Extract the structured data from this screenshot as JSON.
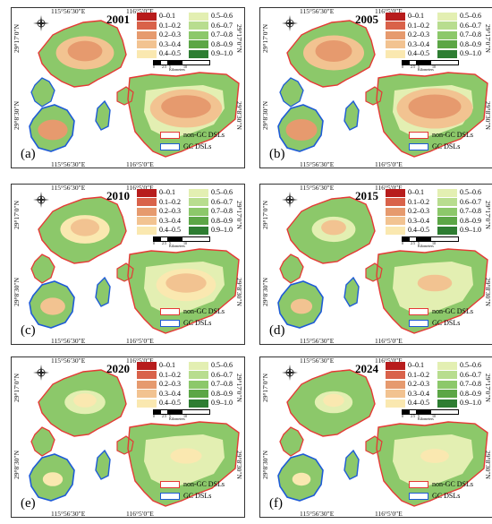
{
  "coords": {
    "top_left": "115°56′30″E",
    "top_right": "116°5′0″E",
    "lat_top": "29°17′0″N",
    "lat_bottom": "29°8′30″N"
  },
  "legend": {
    "classes": [
      "0–0.1",
      "0.1–0.2",
      "0.2–0.3",
      "0.3–0.4",
      "0.4–0.5",
      "0.5–0.6",
      "0.6–0.7",
      "0.7–0.8",
      "0.8–0.9",
      "0.9–1.0"
    ],
    "colors": [
      "#b71c1c",
      "#d9624a",
      "#e69a6e",
      "#f2c391",
      "#fae8b0",
      "#e3efb2",
      "#b8dd8f",
      "#8cc86a",
      "#5ca646",
      "#2e7d32"
    ],
    "non_gc_label": "non-GC DSLs",
    "gc_label": "GC DSLs",
    "non_gc_color": "#e53935",
    "gc_color": "#1e5bd6"
  },
  "scalebar": {
    "ticks": [
      "0",
      "2.5",
      "5",
      "10"
    ],
    "unit": "Kilometers"
  },
  "panels": [
    {
      "year": "2001",
      "letter": "(a)",
      "red_level": 0.7
    },
    {
      "year": "2005",
      "letter": "(b)",
      "red_level": 0.75
    },
    {
      "year": "2010",
      "letter": "(c)",
      "red_level": 0.55
    },
    {
      "year": "2015",
      "letter": "(d)",
      "red_level": 0.45
    },
    {
      "year": "2020",
      "letter": "(e)",
      "red_level": 0.4
    },
    {
      "year": "2024",
      "letter": "(f)",
      "red_level": 0.35
    }
  ],
  "icons": {
    "compass": "compass-icon"
  }
}
